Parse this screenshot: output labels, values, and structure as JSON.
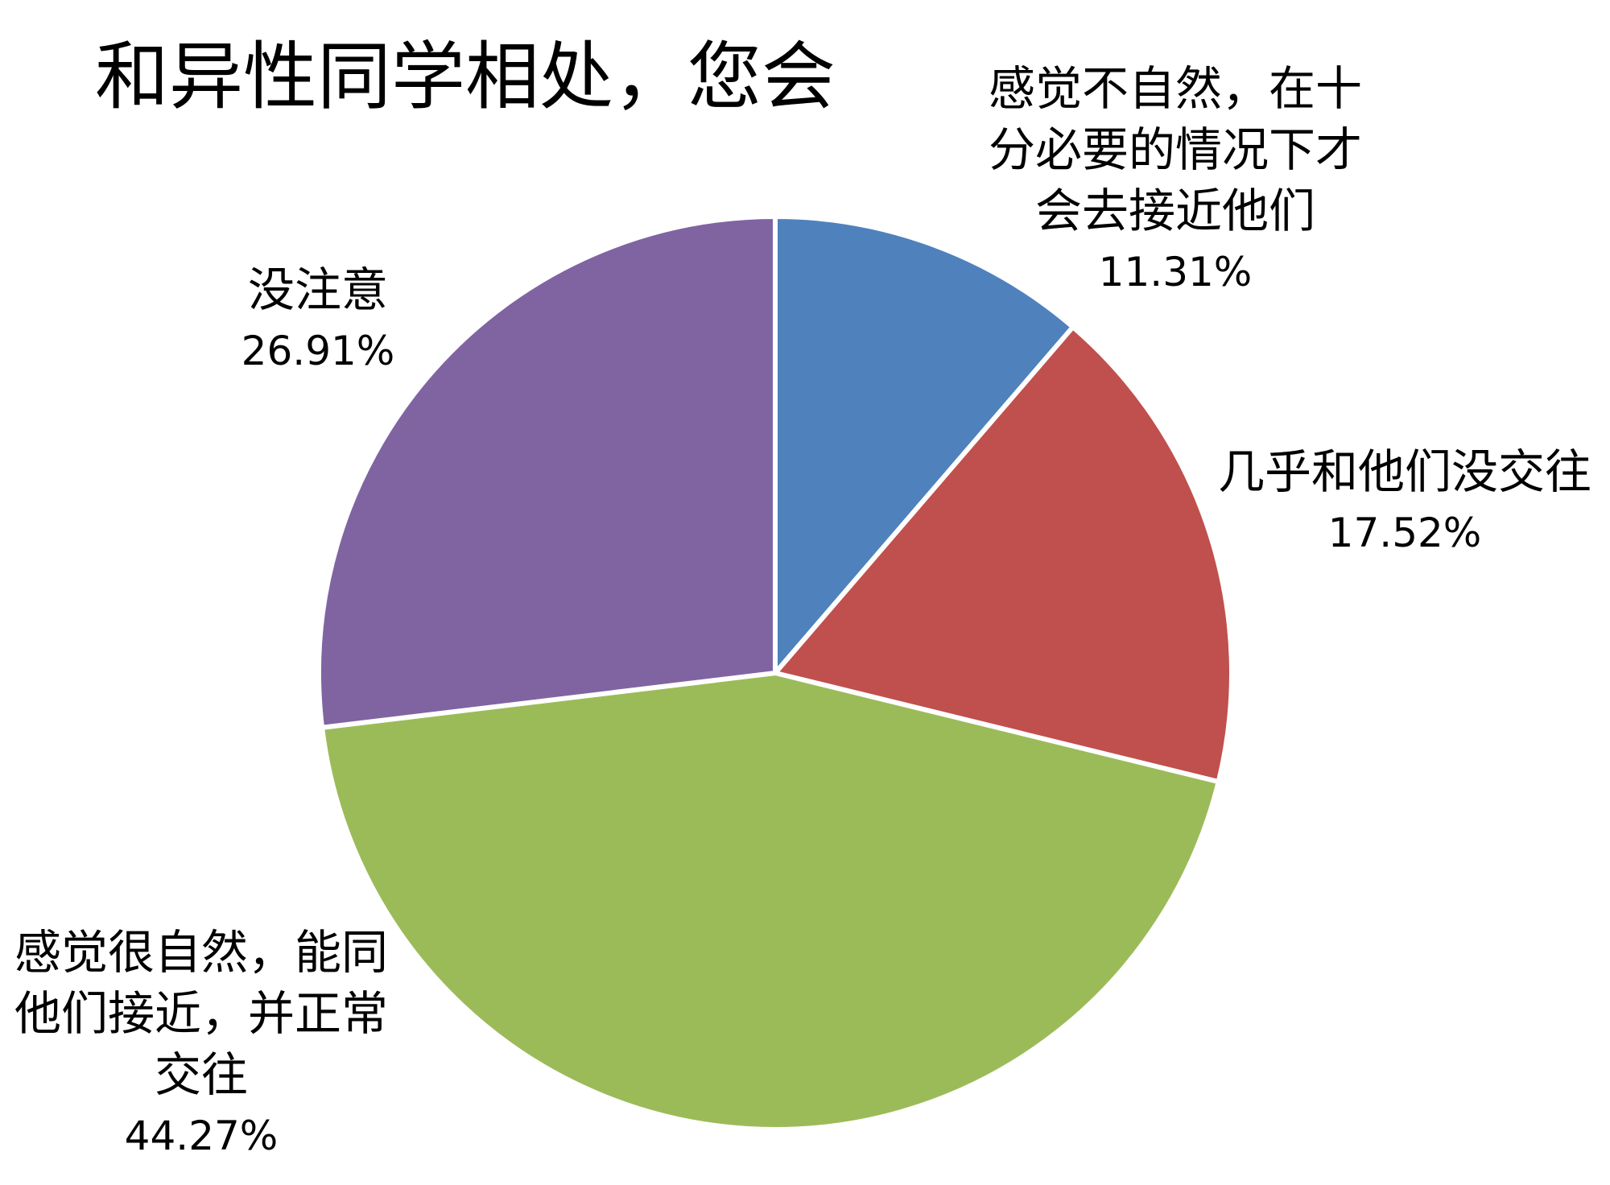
{
  "chart_data": {
    "type": "pie",
    "title": "和异性同学相处，您会",
    "slices": [
      {
        "label": "感觉不自然，在十分必要的情况下才会去接近他们",
        "lines": [
          "感觉不自然，在十",
          "分必要的情况下才",
          "会去接近他们"
        ],
        "value": 11.31,
        "value_text": "11.31%",
        "color": "#4f81bd"
      },
      {
        "label": "几乎和他们没交往",
        "lines": [
          "几乎和他们没交往"
        ],
        "value": 17.52,
        "value_text": "17.52%",
        "color": "#c0504d"
      },
      {
        "label": "感觉很自然，能同他们接近，并正常交往",
        "lines": [
          "感觉很自然，能同",
          "他们接近，并正常",
          "交往"
        ],
        "value": 44.27,
        "value_text": "44.27%",
        "color": "#9bbb59"
      },
      {
        "label": "没注意",
        "lines": [
          "没注意"
        ],
        "value": 26.91,
        "value_text": "26.91%",
        "color": "#8064a2"
      }
    ],
    "start_angle_deg": 0,
    "direction": "clockwise",
    "legend": "none",
    "data_labels": "outside"
  }
}
